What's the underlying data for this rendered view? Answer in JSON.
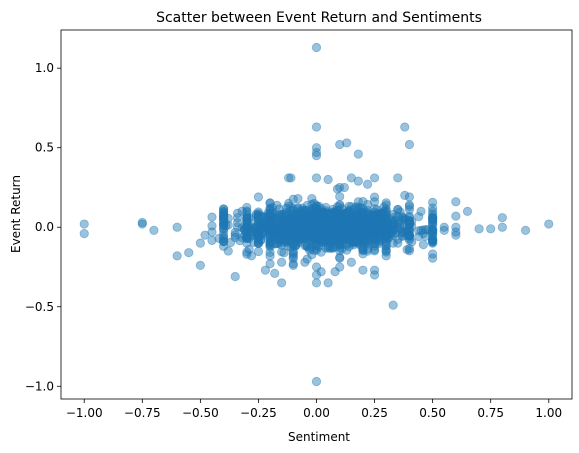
{
  "chart_data": {
    "type": "scatter",
    "title": "Scatter between Event Return and Sentiments",
    "xlabel": "Sentiment",
    "ylabel": "Event Return",
    "xlim": [
      -1.1,
      1.1
    ],
    "ylim": [
      -1.08,
      1.24
    ],
    "x_ticks": [
      -1.0,
      -0.75,
      -0.5,
      -0.25,
      0.0,
      0.25,
      0.5,
      0.75,
      1.0
    ],
    "x_tick_labels": [
      "−1.00",
      "−0.75",
      "−0.50",
      "−0.25",
      "0.00",
      "0.25",
      "0.50",
      "0.75",
      "1.00"
    ],
    "y_ticks": [
      -1.0,
      -0.5,
      0.0,
      0.5,
      1.0
    ],
    "y_tick_labels": [
      "−1.0",
      "−0.5",
      "0.0",
      "0.5",
      "1.0"
    ],
    "grid": false,
    "marker_color": "#1f77b4",
    "marker_alpha": 0.45,
    "points": [
      [
        0.0,
        1.13
      ],
      [
        0.0,
        0.63
      ],
      [
        0.38,
        0.63
      ],
      [
        0.0,
        0.5
      ],
      [
        0.0,
        0.47
      ],
      [
        0.0,
        0.45
      ],
      [
        0.13,
        0.53
      ],
      [
        0.1,
        0.52
      ],
      [
        0.4,
        0.52
      ],
      [
        0.18,
        0.46
      ],
      [
        -0.12,
        0.31
      ],
      [
        -0.11,
        0.31
      ],
      [
        0.0,
        0.31
      ],
      [
        0.05,
        0.3
      ],
      [
        0.15,
        0.31
      ],
      [
        0.18,
        0.29
      ],
      [
        0.25,
        0.31
      ],
      [
        0.35,
        0.31
      ],
      [
        0.22,
        0.27
      ],
      [
        0.09,
        0.24
      ],
      [
        0.12,
        0.25
      ],
      [
        -1.0,
        0.02
      ],
      [
        -1.0,
        -0.04
      ],
      [
        -0.75,
        0.03
      ],
      [
        -0.75,
        0.02
      ],
      [
        -0.7,
        -0.02
      ],
      [
        -0.6,
        0.0
      ],
      [
        -0.6,
        -0.18
      ],
      [
        -0.55,
        -0.16
      ],
      [
        -0.5,
        -0.24
      ],
      [
        -0.5,
        -0.1
      ],
      [
        -0.48,
        -0.05
      ],
      [
        -0.45,
        -0.03
      ],
      [
        -0.42,
        -0.07
      ],
      [
        -0.4,
        0.1
      ],
      [
        -0.4,
        0.05
      ],
      [
        -0.4,
        -0.12
      ],
      [
        -0.38,
        -0.15
      ],
      [
        -0.35,
        -0.31
      ],
      [
        -0.3,
        0.03
      ],
      [
        -0.3,
        -0.1
      ],
      [
        -0.28,
        -0.18
      ],
      [
        -0.25,
        0.19
      ],
      [
        -0.25,
        -0.09
      ],
      [
        -0.22,
        -0.27
      ],
      [
        -0.2,
        0.12
      ],
      [
        -0.2,
        -0.23
      ],
      [
        -0.18,
        -0.29
      ],
      [
        -0.15,
        -0.35
      ],
      [
        -0.15,
        -0.22
      ],
      [
        -0.12,
        0.15
      ],
      [
        -0.1,
        -0.24
      ],
      [
        -0.08,
        0.18
      ],
      [
        -0.05,
        -0.22
      ],
      [
        0.0,
        -0.97
      ],
      [
        0.0,
        -0.35
      ],
      [
        0.0,
        -0.3
      ],
      [
        0.0,
        -0.25
      ],
      [
        0.02,
        -0.28
      ],
      [
        0.05,
        -0.35
      ],
      [
        0.08,
        -0.28
      ],
      [
        0.1,
        -0.25
      ],
      [
        0.15,
        -0.22
      ],
      [
        0.2,
        -0.27
      ],
      [
        0.22,
        -0.15
      ],
      [
        0.25,
        -0.27
      ],
      [
        0.33,
        -0.49
      ],
      [
        0.3,
        -0.18
      ],
      [
        0.35,
        -0.1
      ],
      [
        0.38,
        0.2
      ],
      [
        0.4,
        0.19
      ],
      [
        0.45,
        0.1
      ],
      [
        0.45,
        -0.02
      ],
      [
        0.5,
        0.1
      ],
      [
        0.5,
        0.05
      ],
      [
        0.5,
        -0.02
      ],
      [
        0.5,
        -0.05
      ],
      [
        0.5,
        -0.1
      ],
      [
        0.55,
        0.0
      ],
      [
        0.55,
        -0.02
      ],
      [
        0.6,
        0.16
      ],
      [
        0.6,
        0.07
      ],
      [
        0.6,
        0.0
      ],
      [
        0.6,
        -0.03
      ],
      [
        0.6,
        -0.05
      ],
      [
        0.65,
        0.1
      ],
      [
        0.7,
        -0.01
      ],
      [
        0.75,
        -0.01
      ],
      [
        0.8,
        0.06
      ],
      [
        0.8,
        0.0
      ],
      [
        0.9,
        -0.02
      ],
      [
        1.0,
        0.02
      ]
    ]
  }
}
